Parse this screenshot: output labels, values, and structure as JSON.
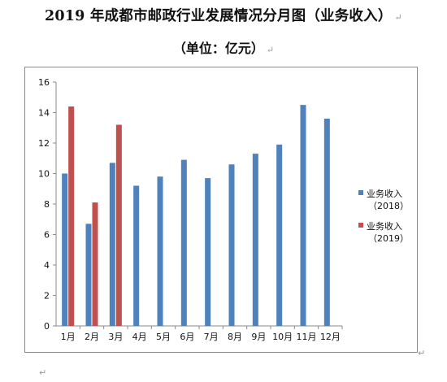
{
  "document": {
    "title": "2019 年成都市邮政行业发展情况分月图（业务收入）",
    "unit": "（单位：亿元）",
    "paragraph_mark": "↵"
  },
  "chart_data": {
    "type": "bar",
    "title": "",
    "xlabel": "",
    "ylabel": "",
    "ylim": [
      0,
      16
    ],
    "yticks": [
      0,
      2,
      4,
      6,
      8,
      10,
      12,
      14,
      16
    ],
    "categories": [
      "1月",
      "2月",
      "3月",
      "4月",
      "5月",
      "6月",
      "7月",
      "8月",
      "9月",
      "10月",
      "11月",
      "12月"
    ],
    "series": [
      {
        "name": "业务收入（2018）",
        "legend_lines": [
          "业务收入",
          "（2018）"
        ],
        "color": "#4f81bd",
        "values": [
          10.0,
          6.7,
          10.7,
          9.2,
          9.8,
          10.9,
          9.7,
          10.6,
          11.3,
          11.9,
          14.5,
          13.6
        ]
      },
      {
        "name": "业务收入（2019）",
        "legend_lines": [
          "业务收入",
          "（2019）"
        ],
        "color": "#c0504d",
        "values": [
          14.4,
          8.1,
          13.2,
          null,
          null,
          null,
          null,
          null,
          null,
          null,
          null,
          null
        ]
      }
    ],
    "grid": false,
    "legend_position": "right"
  }
}
